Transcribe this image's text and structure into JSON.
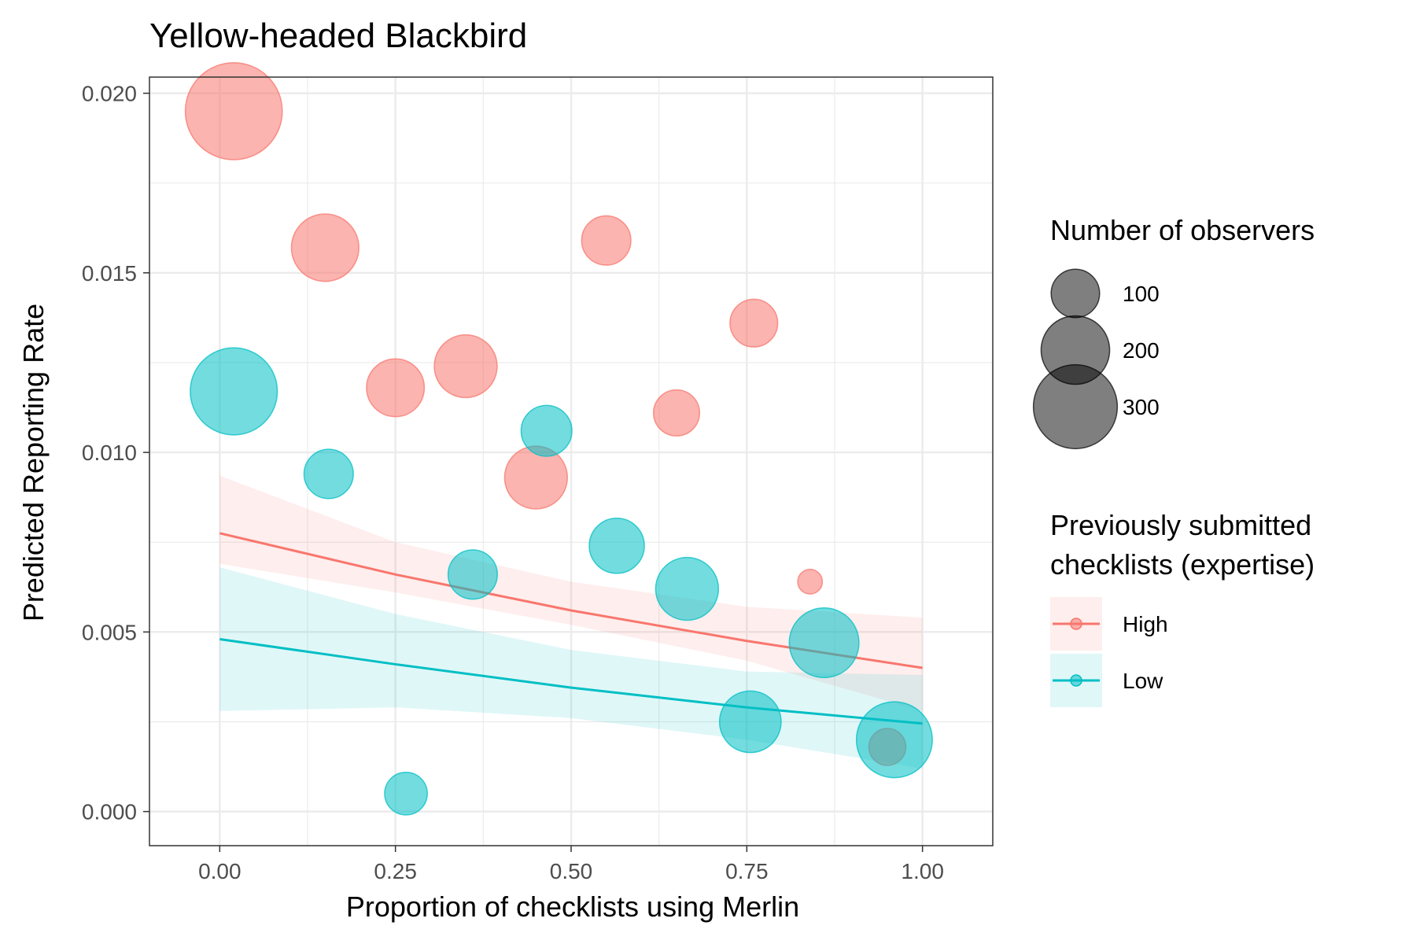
{
  "chart_data": {
    "type": "scatter",
    "title": "Yellow-headed Blackbird",
    "xlabel": "Proportion of checklists using Merlin",
    "ylabel": "Predicted Reporting Rate",
    "xlim": [
      -0.1,
      1.1
    ],
    "ylim": [
      -0.00095,
      0.02045
    ],
    "x_ticks": [
      0.0,
      0.25,
      0.5,
      0.75,
      1.0
    ],
    "x_tick_labels": [
      "0.00",
      "0.25",
      "0.50",
      "0.75",
      "1.00"
    ],
    "y_ticks": [
      0.0,
      0.005,
      0.01,
      0.015,
      0.02
    ],
    "y_tick_labels": [
      "0.000",
      "0.005",
      "0.010",
      "0.015",
      "0.020"
    ],
    "grid": true,
    "colors": {
      "High": "#F8766D",
      "Low": "#00BFC4",
      "size_legend": "#000000"
    },
    "groups": [
      {
        "name": "High",
        "points": [
          {
            "x": 0.02,
            "y": 0.0195,
            "n": 310
          },
          {
            "x": 0.15,
            "y": 0.0157,
            "n": 150
          },
          {
            "x": 0.25,
            "y": 0.0118,
            "n": 110
          },
          {
            "x": 0.35,
            "y": 0.0124,
            "n": 130
          },
          {
            "x": 0.45,
            "y": 0.0093,
            "n": 130
          },
          {
            "x": 0.55,
            "y": 0.0159,
            "n": 80
          },
          {
            "x": 0.65,
            "y": 0.0111,
            "n": 70
          },
          {
            "x": 0.76,
            "y": 0.0136,
            "n": 75
          },
          {
            "x": 0.84,
            "y": 0.0064,
            "n": 20
          },
          {
            "x": 0.95,
            "y": 0.0018,
            "n": 45
          }
        ],
        "fit": [
          {
            "x": 0.0,
            "y": 0.00775,
            "lower": 0.0069,
            "upper": 0.00935
          },
          {
            "x": 0.25,
            "y": 0.0066,
            "lower": 0.0061,
            "upper": 0.0075
          },
          {
            "x": 0.5,
            "y": 0.0056,
            "lower": 0.0052,
            "upper": 0.0064
          },
          {
            "x": 0.75,
            "y": 0.00475,
            "lower": 0.0042,
            "upper": 0.0057
          },
          {
            "x": 1.0,
            "y": 0.004,
            "lower": 0.0028,
            "upper": 0.0054
          }
        ]
      },
      {
        "name": "Low",
        "points": [
          {
            "x": 0.02,
            "y": 0.0117,
            "n": 250
          },
          {
            "x": 0.155,
            "y": 0.0094,
            "n": 80
          },
          {
            "x": 0.265,
            "y": 0.0005,
            "n": 60
          },
          {
            "x": 0.36,
            "y": 0.0066,
            "n": 80
          },
          {
            "x": 0.465,
            "y": 0.0106,
            "n": 85
          },
          {
            "x": 0.565,
            "y": 0.0074,
            "n": 100
          },
          {
            "x": 0.665,
            "y": 0.0062,
            "n": 130
          },
          {
            "x": 0.755,
            "y": 0.0025,
            "n": 125
          },
          {
            "x": 0.86,
            "y": 0.0047,
            "n": 160
          },
          {
            "x": 0.96,
            "y": 0.002,
            "n": 190
          }
        ],
        "fit": [
          {
            "x": 0.0,
            "y": 0.0048,
            "lower": 0.0028,
            "upper": 0.0068
          },
          {
            "x": 0.25,
            "y": 0.0041,
            "lower": 0.0029,
            "upper": 0.0055
          },
          {
            "x": 0.5,
            "y": 0.00345,
            "lower": 0.0026,
            "upper": 0.0045
          },
          {
            "x": 0.75,
            "y": 0.0029,
            "lower": 0.002,
            "upper": 0.0039
          },
          {
            "x": 1.0,
            "y": 0.00245,
            "lower": 0.0012,
            "upper": 0.0038
          }
        ]
      }
    ],
    "legend": {
      "placement": "right",
      "size_title": "Number of observers",
      "size_entries": [
        {
          "label": "100",
          "n": 100
        },
        {
          "label": "200",
          "n": 200
        },
        {
          "label": "300",
          "n": 300
        }
      ],
      "color_title_lines": [
        "Previously submitted",
        "checklists (expertise)"
      ],
      "color_entries": [
        "High",
        "Low"
      ]
    }
  }
}
